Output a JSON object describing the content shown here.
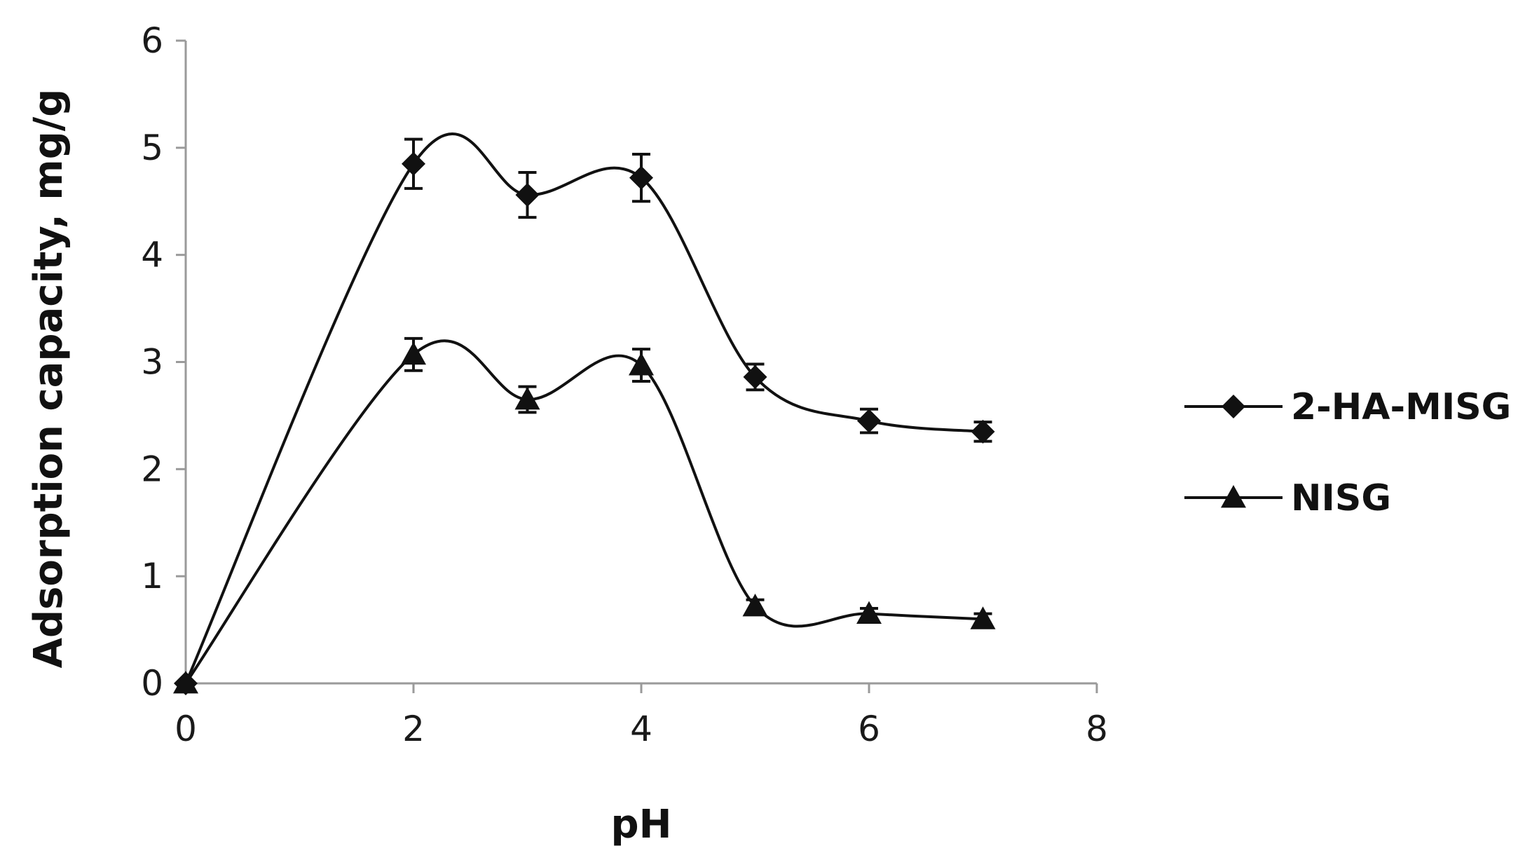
{
  "chart_data": {
    "type": "line",
    "title": "",
    "xlabel": "pH",
    "ylabel": "Adsorption capacity, mg/g",
    "xlim": [
      0,
      8
    ],
    "ylim": [
      0,
      6
    ],
    "xticks": [
      0,
      2,
      4,
      6,
      8
    ],
    "yticks": [
      0,
      1,
      2,
      3,
      4,
      5,
      6
    ],
    "grid": false,
    "legend_position": "right",
    "series": [
      {
        "name": "2-HA-MISG",
        "marker": "diamond",
        "color": "#111111",
        "x": [
          0,
          2,
          3,
          4,
          5,
          6,
          7
        ],
        "y": [
          0,
          4.85,
          4.56,
          4.72,
          2.86,
          2.45,
          2.35
        ],
        "error": [
          0,
          0.23,
          0.21,
          0.22,
          0.12,
          0.11,
          0.09
        ]
      },
      {
        "name": "NISG",
        "marker": "triangle",
        "color": "#111111",
        "x": [
          0,
          2,
          3,
          4,
          5,
          6,
          7
        ],
        "y": [
          0,
          3.07,
          2.65,
          2.97,
          0.72,
          0.65,
          0.6
        ],
        "error": [
          0,
          0.15,
          0.12,
          0.15,
          0.06,
          0.05,
          0.05
        ]
      }
    ]
  }
}
